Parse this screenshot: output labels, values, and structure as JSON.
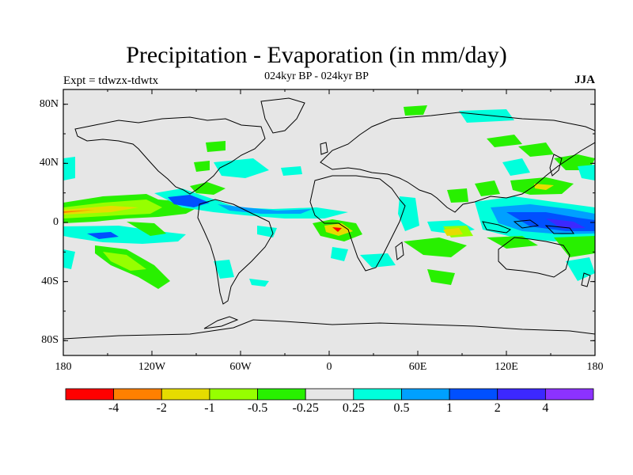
{
  "chart_data": {
    "type": "map",
    "title": "Precipitation - Evaporation (in mm/day)",
    "subtitle": "024kyr BP - 024kyr BP",
    "left_label": "Expt = tdwzx-tdwtx",
    "right_label": "JJA",
    "lat_ticks": [
      "80N",
      "40N",
      "0",
      "40S",
      "80S"
    ],
    "lon_ticks": [
      "180",
      "120W",
      "60W",
      "0",
      "60E",
      "120E",
      "180"
    ],
    "colorbar": {
      "labels": [
        "-4",
        "-2",
        "-1",
        "-0.5",
        "-0.25",
        "0.25",
        "0.5",
        "1",
        "2",
        "4"
      ],
      "colors": [
        "#ff0000",
        "#ff8000",
        "#e6dc00",
        "#96ff00",
        "#28f000",
        "#e6e6e6",
        "#00ffdc",
        "#00a0ff",
        "#0050ff",
        "#3c28ff",
        "#8c32ff"
      ]
    },
    "land_color": "#e6e6e6"
  }
}
